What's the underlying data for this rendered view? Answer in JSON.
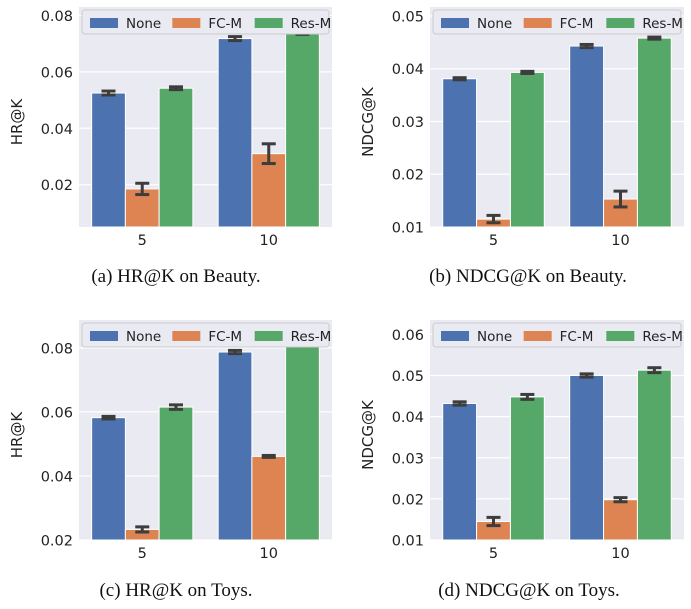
{
  "legend_labels": [
    "None",
    "FC-M",
    "Res-M"
  ],
  "colors": {
    "None": "#4c72b0",
    "FC-M": "#dd8452",
    "Res-M": "#55a868",
    "plot_bg": "#eaeaf2",
    "grid": "#ffffff",
    "errorbar": "#3d3d3d"
  },
  "chart_data": [
    {
      "type": "bar",
      "id": "a",
      "caption": "(a)  HR@K  on  Beauty.",
      "ylabel": "HR@K",
      "xlabel": "",
      "categories": [
        "5",
        "10"
      ],
      "ylim": [
        0.005,
        0.083
      ],
      "yticks": [
        0.02,
        0.04,
        0.06,
        0.08
      ],
      "ytick_labels": [
        "0.02",
        "0.04",
        "0.06",
        "0.08"
      ],
      "grid": true,
      "legend_position": "top",
      "series": [
        {
          "name": "None",
          "values": [
            0.0525,
            0.0718
          ],
          "err": [
            0.0007,
            0.0007
          ]
        },
        {
          "name": "FC-M",
          "values": [
            0.0185,
            0.031
          ],
          "err": [
            0.002,
            0.0035
          ]
        },
        {
          "name": "Res-M",
          "values": [
            0.0542,
            0.0743
          ],
          "err": [
            0.0005,
            0.001
          ]
        }
      ]
    },
    {
      "type": "bar",
      "id": "b",
      "caption": "(b)  NDCG@K  on  Beauty.",
      "ylabel": "NDCG@K",
      "xlabel": "",
      "categories": [
        "5",
        "10"
      ],
      "ylim": [
        0.01,
        0.0517
      ],
      "yticks": [
        0.01,
        0.02,
        0.03,
        0.04,
        0.05
      ],
      "ytick_labels": [
        "0.01",
        "0.02",
        "0.03",
        "0.04",
        "0.05"
      ],
      "grid": true,
      "legend_position": "top",
      "series": [
        {
          "name": "None",
          "values": [
            0.0381,
            0.0443
          ],
          "err": [
            0.0002,
            0.0003
          ]
        },
        {
          "name": "FC-M",
          "values": [
            0.0115,
            0.0153
          ],
          "err": [
            0.0007,
            0.0015
          ]
        },
        {
          "name": "Res-M",
          "values": [
            0.0393,
            0.0458
          ],
          "err": [
            0.0002,
            0.0002
          ]
        }
      ]
    },
    {
      "type": "bar",
      "id": "c",
      "caption": "(c)  HR@K  on  Toys.",
      "ylabel": "HR@K",
      "xlabel": "",
      "categories": [
        "5",
        "10"
      ],
      "ylim": [
        0.02,
        0.0887
      ],
      "yticks": [
        0.02,
        0.04,
        0.06,
        0.08
      ],
      "ytick_labels": [
        "0.02",
        "0.04",
        "0.06",
        "0.08"
      ],
      "grid": true,
      "legend_position": "top",
      "series": [
        {
          "name": "None",
          "values": [
            0.0582,
            0.0787
          ],
          "err": [
            0.0004,
            0.0005
          ]
        },
        {
          "name": "FC-M",
          "values": [
            0.0233,
            0.0461
          ],
          "err": [
            0.0008,
            0.0003
          ]
        },
        {
          "name": "Res-M",
          "values": [
            0.0615,
            0.0818
          ],
          "err": [
            0.0007,
            0.0007
          ]
        }
      ]
    },
    {
      "type": "bar",
      "id": "d",
      "caption": "(d)  NDCG@K  on  Toys.",
      "ylabel": "NDCG@K",
      "xlabel": "",
      "categories": [
        "5",
        "10"
      ],
      "ylim": [
        0.01,
        0.0635
      ],
      "yticks": [
        0.01,
        0.02,
        0.03,
        0.04,
        0.05,
        0.06
      ],
      "ytick_labels": [
        "0.01",
        "0.02",
        "0.03",
        "0.04",
        "0.05",
        "0.06"
      ],
      "grid": true,
      "legend_position": "top",
      "series": [
        {
          "name": "None",
          "values": [
            0.0432,
            0.05
          ],
          "err": [
            0.0004,
            0.0004
          ]
        },
        {
          "name": "FC-M",
          "values": [
            0.0145,
            0.0198
          ],
          "err": [
            0.001,
            0.0005
          ]
        },
        {
          "name": "Res-M",
          "values": [
            0.0448,
            0.0513
          ],
          "err": [
            0.0006,
            0.0006
          ]
        }
      ]
    }
  ]
}
